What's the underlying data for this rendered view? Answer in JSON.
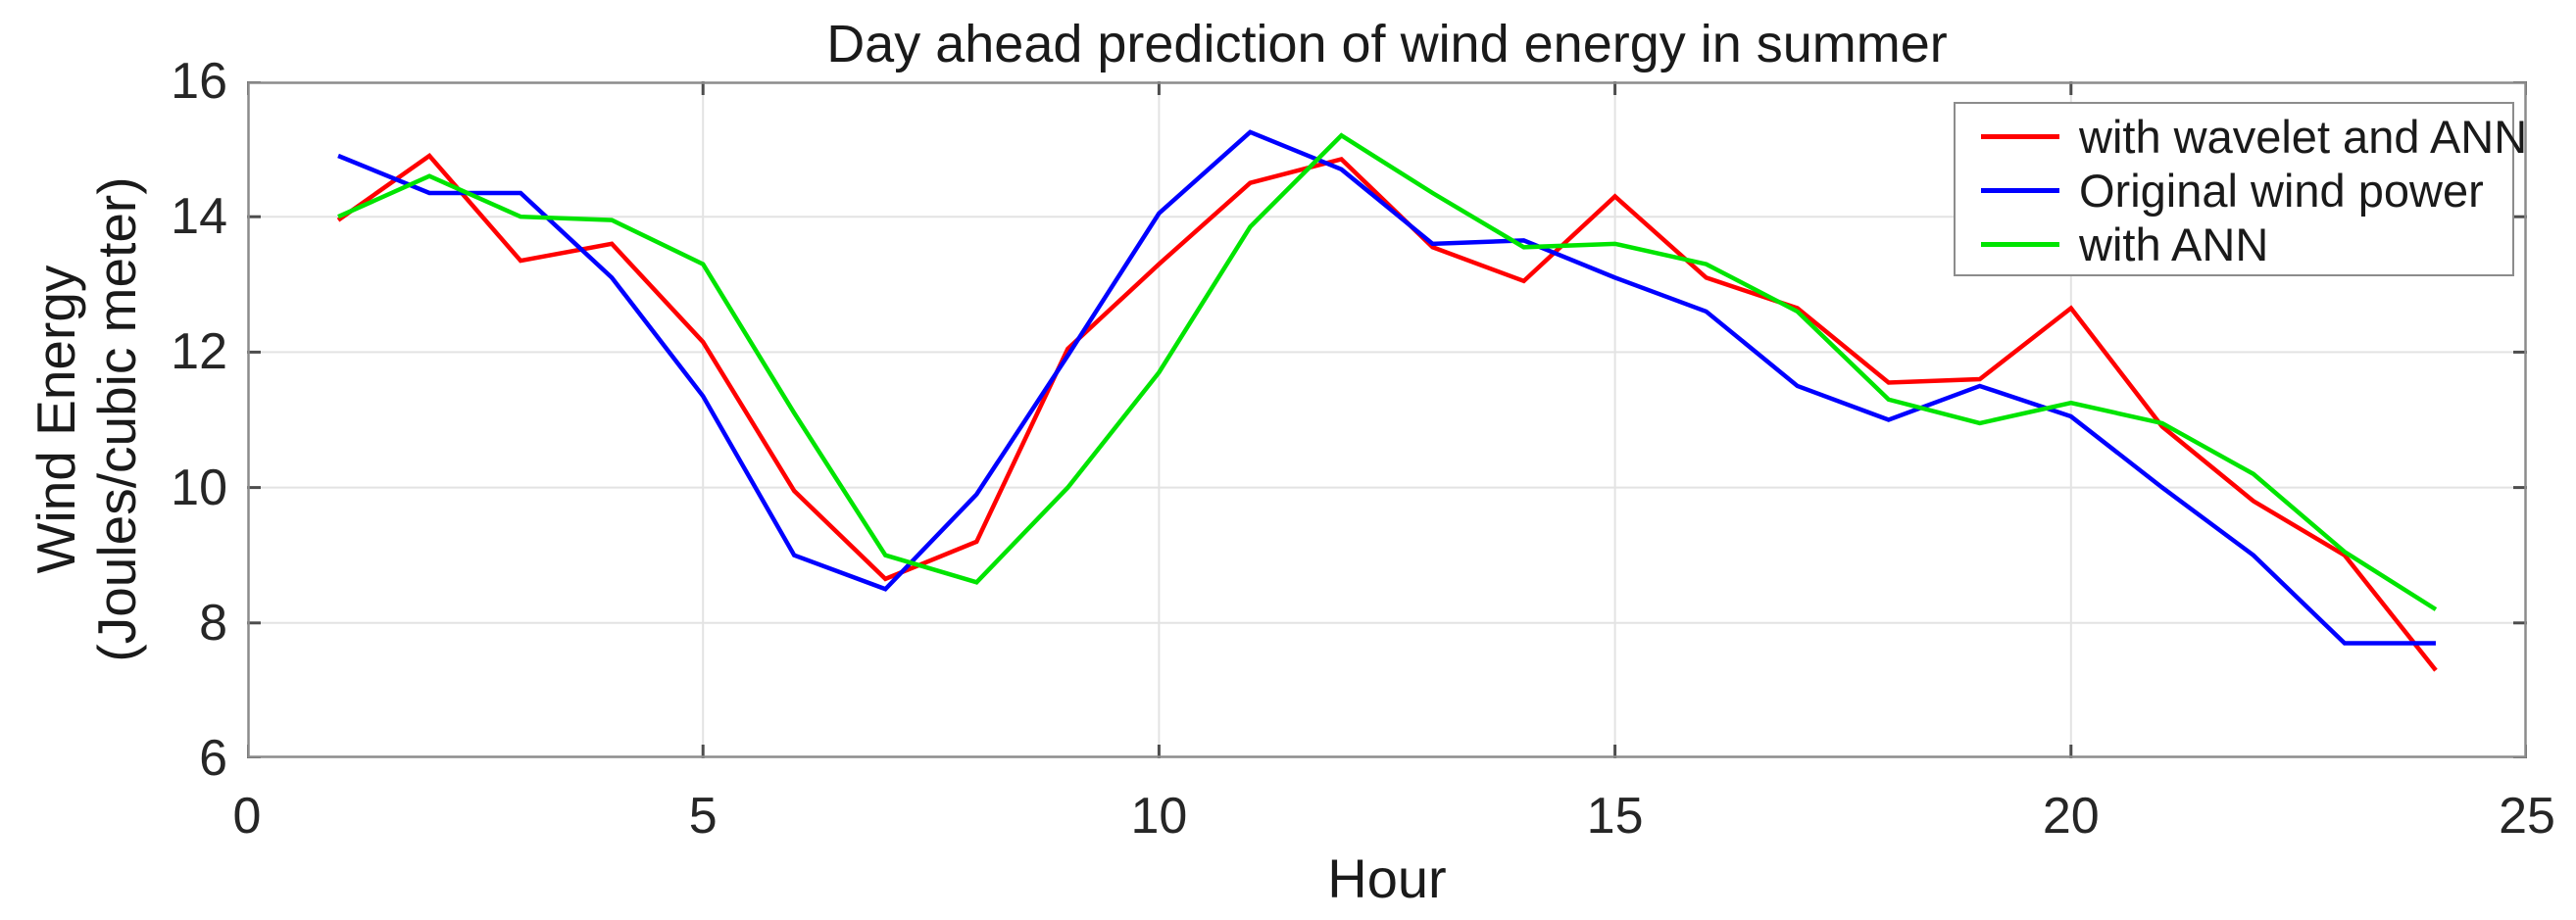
{
  "chart_data": {
    "type": "line",
    "title": "Day ahead prediction of wind energy in summer",
    "xlabel": "Hour",
    "ylabel_line1": "Wind Energy",
    "ylabel_line2": "(Joules/cubic meter)",
    "xlim": [
      0,
      25
    ],
    "ylim": [
      6,
      16
    ],
    "xticks": [
      0,
      5,
      10,
      15,
      20,
      25
    ],
    "yticks": [
      6,
      8,
      10,
      12,
      14,
      16
    ],
    "grid": true,
    "legend_position": "top-right-inside",
    "frame_color": "#8c8c8c",
    "grid_color": "#e3e3e3",
    "tick_color": "#4d4d4d",
    "x": [
      1,
      2,
      3,
      4,
      5,
      6,
      7,
      8,
      9,
      10,
      11,
      12,
      13,
      14,
      15,
      16,
      17,
      18,
      19,
      20,
      21,
      22,
      23,
      24
    ],
    "series": [
      {
        "name": "with wavelet and ANN",
        "color": "#ff0000",
        "values": [
          13.95,
          14.9,
          13.35,
          13.6,
          12.15,
          9.95,
          8.65,
          9.2,
          12.05,
          13.3,
          14.5,
          14.85,
          13.55,
          13.05,
          14.3,
          13.1,
          12.65,
          11.55,
          11.6,
          12.65,
          10.9,
          9.8,
          9.0,
          7.3
        ]
      },
      {
        "name": "Original wind power",
        "color": "#0000ff",
        "values": [
          14.9,
          14.35,
          14.35,
          13.1,
          11.35,
          9.0,
          8.5,
          9.9,
          11.95,
          14.05,
          15.25,
          14.7,
          13.6,
          13.65,
          13.1,
          12.6,
          11.5,
          11.0,
          11.5,
          11.05,
          10.0,
          9.0,
          7.7,
          7.7
        ]
      },
      {
        "name": "with ANN",
        "color": "#00e400",
        "values": [
          14.0,
          14.6,
          14.0,
          13.95,
          13.3,
          11.1,
          9.0,
          8.6,
          10.0,
          11.7,
          13.85,
          15.2,
          14.35,
          13.55,
          13.6,
          13.3,
          12.6,
          11.3,
          10.95,
          11.25,
          10.95,
          10.2,
          9.05,
          8.2
        ]
      }
    ]
  }
}
